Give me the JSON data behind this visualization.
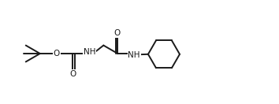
{
  "background_color": "#ffffff",
  "line_color": "#1a1a1a",
  "line_width": 1.4,
  "font_size": 7.5,
  "figure_width": 3.54,
  "figure_height": 1.32,
  "dpi": 100,
  "xlim": [
    0.0,
    8.8
  ],
  "ylim": [
    0.2,
    3.2
  ]
}
